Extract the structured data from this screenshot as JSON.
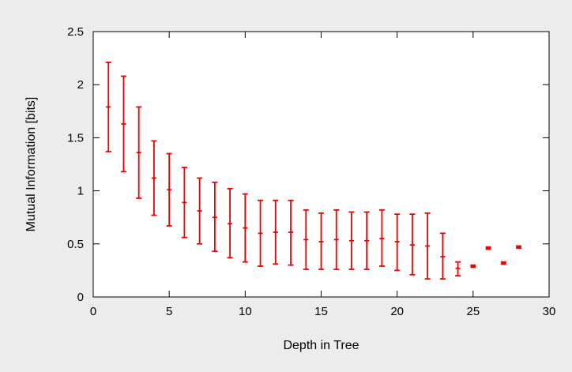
{
  "chart_data": {
    "type": "scatter",
    "title": "",
    "xlabel": "Depth in Tree",
    "ylabel": "Mutual Information [bits]",
    "xlim": [
      0,
      30
    ],
    "ylim": [
      0,
      2.5
    ],
    "x_ticks": [
      "0",
      "5",
      "10",
      "15",
      "20",
      "25",
      "30"
    ],
    "y_ticks": [
      "0",
      "0.5",
      "1",
      "1.5",
      "2",
      "2.5"
    ],
    "grid": false,
    "legend": "none",
    "color": "#ee0000",
    "series": [
      {
        "points": [
          {
            "x": 1,
            "y": 1.79,
            "low": 1.37,
            "high": 2.21
          },
          {
            "x": 2,
            "y": 1.63,
            "low": 1.18,
            "high": 2.08
          },
          {
            "x": 3,
            "y": 1.36,
            "low": 0.93,
            "high": 1.79
          },
          {
            "x": 4,
            "y": 1.12,
            "low": 0.77,
            "high": 1.47
          },
          {
            "x": 5,
            "y": 1.01,
            "low": 0.67,
            "high": 1.35
          },
          {
            "x": 6,
            "y": 0.89,
            "low": 0.56,
            "high": 1.22
          },
          {
            "x": 7,
            "y": 0.81,
            "low": 0.5,
            "high": 1.12
          },
          {
            "x": 8,
            "y": 0.75,
            "low": 0.43,
            "high": 1.08
          },
          {
            "x": 9,
            "y": 0.69,
            "low": 0.37,
            "high": 1.02
          },
          {
            "x": 10,
            "y": 0.65,
            "low": 0.33,
            "high": 0.97
          },
          {
            "x": 11,
            "y": 0.6,
            "low": 0.29,
            "high": 0.91
          },
          {
            "x": 12,
            "y": 0.61,
            "low": 0.31,
            "high": 0.91
          },
          {
            "x": 13,
            "y": 0.61,
            "low": 0.3,
            "high": 0.91
          },
          {
            "x": 14,
            "y": 0.54,
            "low": 0.26,
            "high": 0.82
          },
          {
            "x": 15,
            "y": 0.52,
            "low": 0.26,
            "high": 0.79
          },
          {
            "x": 16,
            "y": 0.54,
            "low": 0.26,
            "high": 0.82
          },
          {
            "x": 17,
            "y": 0.53,
            "low": 0.26,
            "high": 0.8
          },
          {
            "x": 18,
            "y": 0.53,
            "low": 0.26,
            "high": 0.8
          },
          {
            "x": 19,
            "y": 0.55,
            "low": 0.29,
            "high": 0.82
          },
          {
            "x": 20,
            "y": 0.52,
            "low": 0.25,
            "high": 0.78
          },
          {
            "x": 21,
            "y": 0.49,
            "low": 0.21,
            "high": 0.78
          },
          {
            "x": 22,
            "y": 0.48,
            "low": 0.17,
            "high": 0.79
          },
          {
            "x": 23,
            "y": 0.38,
            "low": 0.17,
            "high": 0.6
          },
          {
            "x": 24,
            "y": 0.27,
            "low": 0.2,
            "high": 0.33
          },
          {
            "x": 25,
            "y": 0.29,
            "low": 0.28,
            "high": 0.3
          },
          {
            "x": 26,
            "y": 0.46,
            "low": 0.45,
            "high": 0.47
          },
          {
            "x": 27,
            "y": 0.32,
            "low": 0.31,
            "high": 0.33
          },
          {
            "x": 28,
            "y": 0.47,
            "low": 0.46,
            "high": 0.48
          }
        ]
      }
    ]
  }
}
